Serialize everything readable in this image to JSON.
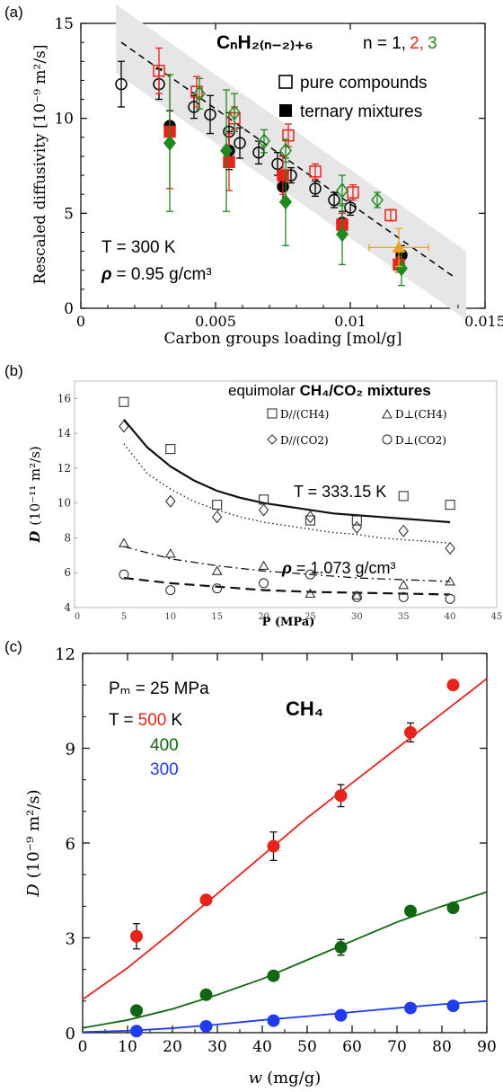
{
  "colors": {
    "red": "#e8231c",
    "green": "#1e8a1e",
    "blue": "#1f3cf0",
    "darkgreen": "#116611",
    "orange": "#f0a020",
    "black": "#000000",
    "band": "#e6e6e6"
  },
  "chart_data": [
    {
      "panel": "(a)",
      "type": "scatter",
      "xlabel": "Carbon groups loading [mol/g]",
      "ylabel": "Rescaled diffusivity [10⁻⁹ m²/s]",
      "xlim": [
        0,
        0.015
      ],
      "ylim": [
        0,
        15
      ],
      "xticks": [
        "0",
        "0.005",
        "0.01",
        "0.015"
      ],
      "yticks": [
        "0",
        "5",
        "10",
        "15"
      ],
      "title_formula": "CₙH₂₍ₙ₋₂₎₊₆",
      "n_label": "n = 1,",
      "n_values": [
        "2,",
        "3"
      ],
      "legend": [
        "pure compounds",
        "ternary mixtures"
      ],
      "annotation_T": "T = 300 K",
      "annotation_rho_symbol": "ρ",
      "annotation_rho": "= 0.95 g/cm³",
      "trend_line": {
        "x": [
          0.0015,
          0.0138
        ],
        "y": [
          14.0,
          1.7
        ]
      },
      "series": [
        {
          "name": "n = 1 pure",
          "marker": "open-circle",
          "color": "black",
          "x": [
            0.0015,
            0.0029,
            0.0042,
            0.0048,
            0.0055,
            0.0059,
            0.0066,
            0.0073,
            0.0078,
            0.0087,
            0.0094,
            0.01
          ],
          "y": [
            11.8,
            11.8,
            10.6,
            10.2,
            9.3,
            8.7,
            8.2,
            7.6,
            7.0,
            6.3,
            5.7,
            5.3
          ],
          "err": [
            1.2,
            0.8,
            0.6,
            1.0,
            1.0,
            0.8,
            0.6,
            0.6,
            0.4,
            0.4,
            0.4,
            0.4
          ]
        },
        {
          "name": "n = 2 pure",
          "marker": "open-square",
          "color": "red",
          "x": [
            0.0029,
            0.0043,
            0.0057,
            0.0077,
            0.0087,
            0.0101,
            0.0115
          ],
          "y": [
            12.5,
            11.4,
            10.0,
            9.1,
            7.2,
            6.1,
            4.9
          ],
          "err": [
            1.2,
            0.8,
            0.6,
            0.6,
            0.4,
            0.4,
            0.3
          ]
        },
        {
          "name": "n = 3 pure",
          "marker": "open-diamond",
          "color": "green",
          "x": [
            0.0044,
            0.0057,
            0.0068,
            0.0076,
            0.0097,
            0.011
          ],
          "y": [
            11.3,
            10.3,
            8.8,
            8.3,
            6.2,
            5.7
          ],
          "err": [
            0.8,
            1.0,
            0.6,
            0.6,
            0.8,
            0.4
          ]
        },
        {
          "name": "n = 1 mixture",
          "marker": "filled-circle",
          "color": "black",
          "x": [
            0.0033,
            0.0055,
            0.0075,
            0.0097,
            0.0119
          ],
          "y": [
            9.6,
            8.3,
            6.4,
            4.5,
            2.8
          ],
          "err": [
            0.8,
            1.0,
            0.8,
            0.6,
            0.5
          ]
        },
        {
          "name": "n = 2 mixture",
          "marker": "filled-square",
          "color": "red",
          "x": [
            0.0033,
            0.0055,
            0.0075,
            0.0097,
            0.0118
          ],
          "y": [
            9.3,
            7.7,
            7.0,
            4.4,
            2.3
          ],
          "err": [
            3.0,
            1.5,
            1.0,
            0.6,
            0.4
          ]
        },
        {
          "name": "n = 3 mixture",
          "marker": "filled-diamond",
          "color": "green",
          "x": [
            0.0033,
            0.0054,
            0.0076,
            0.0097,
            0.0119
          ],
          "y": [
            8.7,
            8.3,
            5.6,
            3.9,
            2.1
          ],
          "err": [
            3.6,
            3.2,
            2.3,
            1.6,
            0.9
          ]
        },
        {
          "name": "orange",
          "marker": "filled-triangle",
          "color": "orange",
          "x": [
            0.0118
          ],
          "y": [
            3.2
          ],
          "err": [
            1.0
          ],
          "xerr": [
            0.0011
          ]
        }
      ]
    },
    {
      "panel": "(b)",
      "type": "scatter",
      "title": "equimolar",
      "title_bold": "CH₄/CO₂ mixtures",
      "xlabel": "P (MPa)",
      "ylabel_symbol": "D",
      "ylabel": "(10⁻¹¹ m²/s)",
      "xlim": [
        0,
        45
      ],
      "ylim": [
        4,
        17
      ],
      "xticks": [
        "0",
        "5",
        "10",
        "15",
        "20",
        "25",
        "30",
        "35",
        "40",
        "45"
      ],
      "yticks": [
        "4",
        "6",
        "8",
        "10",
        "12",
        "14",
        "16"
      ],
      "legend": [
        "D∕∕(CH4)",
        "D⊥(CH4)",
        "D∕∕(CO2)",
        "D⊥(CO2)"
      ],
      "annotation_T": "T = 333.15 K",
      "annotation_rho_symbol": "ρ",
      "annotation_rho": "= 1.073 g/cm³",
      "x": [
        5,
        10,
        15,
        20,
        25,
        30,
        35,
        40
      ],
      "series": [
        {
          "name": "D∕∕(CH4)",
          "marker": "square",
          "y": [
            15.8,
            13.1,
            9.9,
            10.2,
            9.0,
            9.0,
            10.4,
            9.9
          ]
        },
        {
          "name": "D⊥(CH4)",
          "marker": "triangle",
          "y": [
            7.7,
            7.1,
            6.1,
            6.4,
            4.8,
            4.7,
            5.3,
            5.5
          ]
        },
        {
          "name": "D∕∕(CO2)",
          "marker": "diamond",
          "y": [
            14.4,
            10.1,
            9.2,
            9.6,
            9.2,
            8.6,
            8.4,
            7.4
          ]
        },
        {
          "name": "D⊥(CO2)",
          "marker": "circle",
          "y": [
            5.9,
            5.0,
            5.1,
            5.4,
            5.9,
            4.6,
            4.6,
            4.5
          ]
        }
      ],
      "fits": [
        {
          "style": "solid",
          "x": [
            5,
            7.5,
            10,
            12.5,
            15,
            17.5,
            20,
            22.5,
            25,
            27.5,
            30,
            32.5,
            35,
            37.5,
            40
          ],
          "y": [
            14.8,
            13.2,
            12.1,
            11.3,
            10.7,
            10.3,
            10.0,
            9.8,
            9.6,
            9.4,
            9.3,
            9.2,
            9.1,
            9.0,
            8.9
          ]
        },
        {
          "style": "dotted",
          "x": [
            5,
            7.5,
            10,
            12.5,
            15,
            17.5,
            20,
            22.5,
            25,
            27.5,
            30,
            32.5,
            35,
            37.5,
            40
          ],
          "y": [
            13.4,
            11.7,
            10.8,
            10.1,
            9.6,
            9.2,
            8.9,
            8.7,
            8.5,
            8.3,
            8.2,
            8.0,
            7.9,
            7.8,
            7.7
          ]
        },
        {
          "style": "dashdot",
          "x": [
            5,
            10,
            15,
            20,
            25,
            30,
            35,
            40
          ],
          "y": [
            7.5,
            6.8,
            6.4,
            6.1,
            5.9,
            5.7,
            5.6,
            5.5
          ]
        },
        {
          "style": "dashed",
          "x": [
            5,
            10,
            15,
            20,
            25,
            30,
            35,
            40
          ],
          "y": [
            5.7,
            5.4,
            5.2,
            5.0,
            4.9,
            4.85,
            4.8,
            4.75
          ]
        }
      ]
    },
    {
      "panel": "(c)",
      "type": "scatter",
      "title": "CH₄",
      "xlabel_symbol": "w",
      "xlabel": "(mg/g)",
      "ylabel_symbol": "D",
      "ylabel": "(10⁻⁹ m²/s)",
      "xlim": [
        0,
        90
      ],
      "ylim": [
        0,
        12
      ],
      "xticks": [
        "0",
        "10",
        "20",
        "30",
        "40",
        "50",
        "60",
        "70",
        "80",
        "90"
      ],
      "yticks": [
        "0",
        "3",
        "6",
        "9",
        "12"
      ],
      "annotation_Pm": "Pₘ = 25 MPa",
      "annotation_T": "T =",
      "annotation_unit": "K",
      "series": [
        {
          "name": "500",
          "color": "red",
          "x": [
            12,
            27.5,
            42.5,
            57.5,
            73,
            82.5
          ],
          "y": [
            3.05,
            4.2,
            5.9,
            7.5,
            9.5,
            11.0
          ],
          "err": [
            0.4,
            0.1,
            0.45,
            0.35,
            0.3,
            0.1
          ],
          "fit_x": [
            0,
            10,
            20,
            30,
            40,
            50,
            60,
            70,
            80,
            90
          ],
          "fit_y": [
            1.05,
            2.05,
            3.2,
            4.4,
            5.6,
            6.8,
            7.9,
            9.0,
            10.1,
            11.2
          ]
        },
        {
          "name": "400",
          "color": "darkgreen",
          "x": [
            12,
            27.5,
            42.5,
            57.5,
            73,
            82.5
          ],
          "y": [
            0.7,
            1.2,
            1.8,
            2.7,
            3.85,
            3.95
          ],
          "err": [
            0.1,
            0.1,
            0.1,
            0.25,
            0.1,
            0.1
          ],
          "fit_x": [
            0,
            10,
            20,
            30,
            40,
            50,
            60,
            70,
            80,
            90
          ],
          "fit_y": [
            0.15,
            0.4,
            0.75,
            1.2,
            1.7,
            2.3,
            2.9,
            3.5,
            4.0,
            4.45
          ]
        },
        {
          "name": "300",
          "color": "blue",
          "x": [
            12,
            27.5,
            42.5,
            57.5,
            73,
            82.5
          ],
          "y": [
            0.05,
            0.2,
            0.38,
            0.55,
            0.78,
            0.85
          ],
          "err": [
            0,
            0,
            0,
            0,
            0,
            0
          ],
          "fit_x": [
            0,
            10,
            20,
            30,
            40,
            50,
            60,
            70,
            80,
            90
          ],
          "fit_y": [
            0.02,
            0.06,
            0.14,
            0.26,
            0.4,
            0.52,
            0.65,
            0.78,
            0.9,
            1.0
          ]
        }
      ]
    }
  ]
}
